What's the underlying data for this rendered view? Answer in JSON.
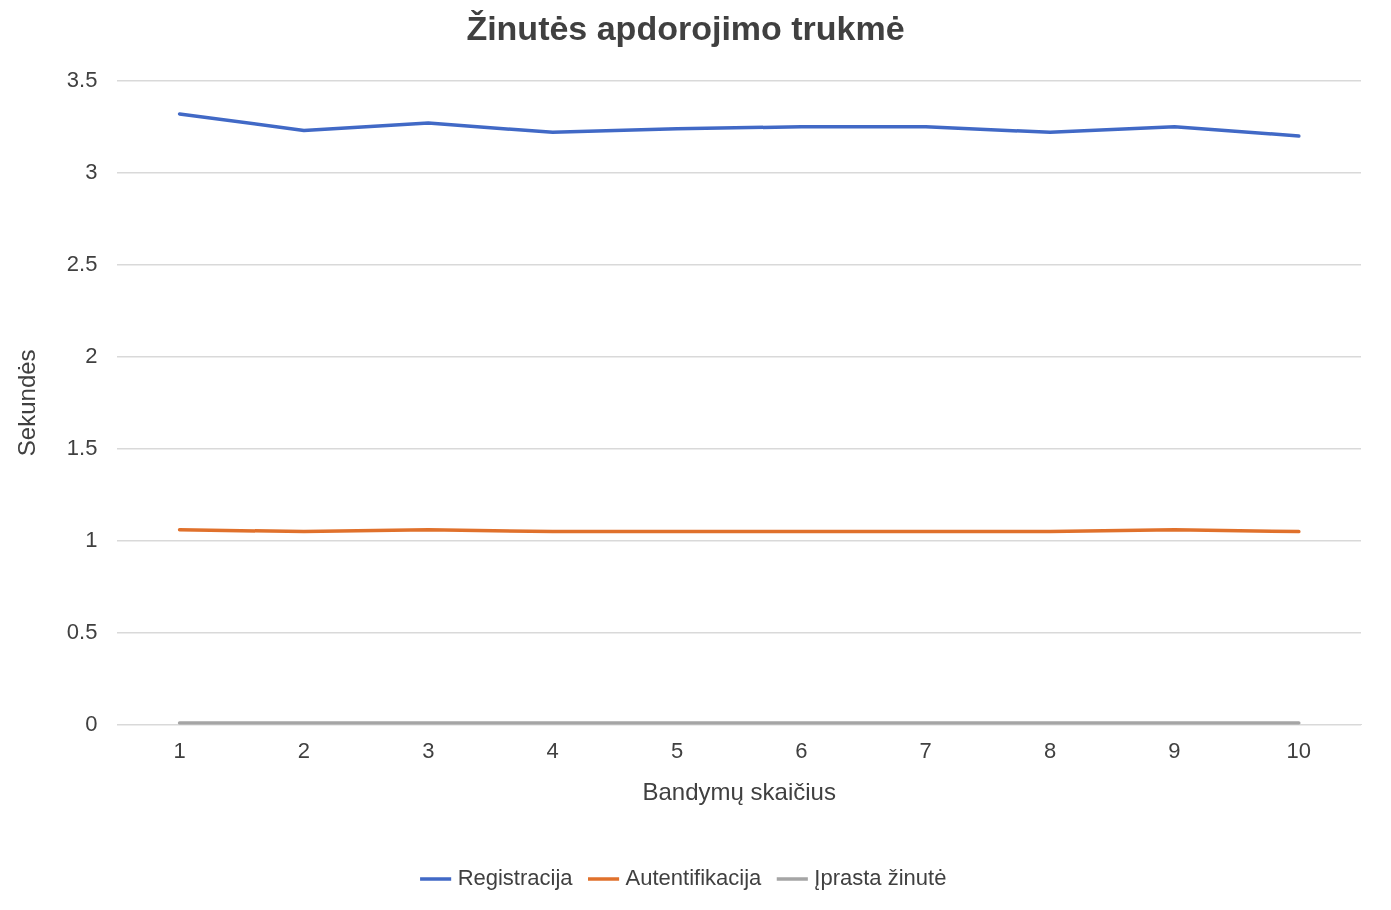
{
  "chart_data": {
    "type": "line",
    "title": "Žinutės apdorojimo trukmė",
    "xlabel": "Bandymų skaičius",
    "ylabel": "Sekundės",
    "categories": [
      "1",
      "2",
      "3",
      "4",
      "5",
      "6",
      "7",
      "8",
      "9",
      "10"
    ],
    "series": [
      {
        "name": "Registracija",
        "color": "#4169c6",
        "values": [
          3.32,
          3.23,
          3.27,
          3.22,
          3.24,
          3.25,
          3.25,
          3.22,
          3.25,
          3.2
        ]
      },
      {
        "name": "Autentifikacija",
        "color": "#e0712c",
        "values": [
          1.06,
          1.05,
          1.06,
          1.05,
          1.05,
          1.05,
          1.05,
          1.05,
          1.06,
          1.05
        ]
      },
      {
        "name": "Įprasta žinutė",
        "color": "#a5a5a5",
        "values": [
          0.01,
          0.01,
          0.01,
          0.01,
          0.01,
          0.01,
          0.01,
          0.01,
          0.01,
          0.01
        ]
      }
    ],
    "ylim": [
      0,
      3.5
    ],
    "yticks": [
      0,
      0.5,
      1,
      1.5,
      2,
      2.5,
      3,
      3.5
    ],
    "grid": "y",
    "legend": "bottom",
    "marker": "none",
    "line_style": "solid"
  }
}
